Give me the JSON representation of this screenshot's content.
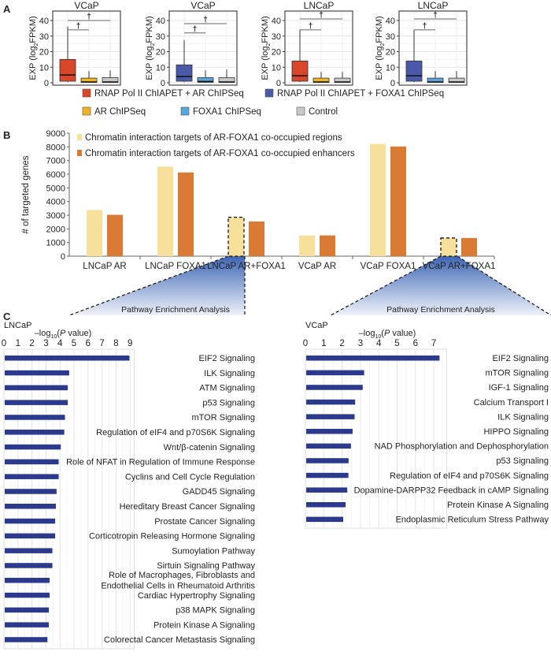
{
  "panel_labels": {
    "a": "A",
    "b": "B",
    "c": "C"
  },
  "colors": {
    "rnap_ar": "#d9472b",
    "rnap_foxa1": "#4a5aa8",
    "ar": "#f0b323",
    "foxa1": "#5aa6dc",
    "control": "#c8c8c8",
    "regions": "#f7df9c",
    "enhancers": "#d97b35",
    "pathway_bar": "#2b3a8c"
  },
  "legend_a": [
    {
      "label": "RNAP Pol II ChIAPET + AR ChIPSeq",
      "color_key": "rnap_ar"
    },
    {
      "label": "RNAP Pol II ChIAPET + FOXA1 ChIPSeq",
      "color_key": "rnap_foxa1"
    },
    {
      "label": "AR ChIPSeq",
      "color_key": "ar"
    },
    {
      "label": "FOXA1 ChIPSeq",
      "color_key": "foxa1"
    },
    {
      "label": "Control",
      "color_key": "control"
    }
  ],
  "pathway_label_left": "Pathway Enrichment Analysis",
  "pathway_label_right": "Pathway Enrichment Analysis",
  "chart_data": [
    {
      "type": "box",
      "title": "VCaP",
      "ylabel_parts": [
        "EXP (log",
        "2",
        "FPKM)"
      ],
      "ylim": [
        -2,
        46
      ],
      "yticks": [
        "0",
        "10",
        "20",
        "30",
        "40"
      ],
      "grid": true,
      "boxes": [
        {
          "series": "RNAP Pol II ChIAPET + AR ChIPSeq",
          "color_key": "rnap_ar",
          "min": 0.5,
          "q1": 1,
          "median": 5,
          "q3": 15,
          "max": 36
        },
        {
          "series": "AR ChIPSeq",
          "color_key": "ar",
          "min": 0,
          "q1": 0.3,
          "median": 0.5,
          "q3": 3,
          "max": 7.5
        },
        {
          "series": "Control",
          "color_key": "control",
          "min": 0,
          "q1": 0.3,
          "median": 0.5,
          "q3": 3.3,
          "max": 8
        }
      ],
      "significance": [
        {
          "from": 0,
          "to": 2,
          "level": 40,
          "label": "†"
        },
        {
          "from": 0,
          "to": 1,
          "level": 34,
          "label": "†"
        }
      ]
    },
    {
      "type": "box",
      "title": "VCaP",
      "ylabel_parts": [
        "EXP (log",
        "2",
        "FPKM)"
      ],
      "ylim": [
        -2,
        46
      ],
      "yticks": [
        "0",
        "10",
        "20",
        "30",
        "40"
      ],
      "grid": true,
      "boxes": [
        {
          "series": "RNAP Pol II ChIAPET + FOXA1 ChIPSeq",
          "color_key": "rnap_foxa1",
          "min": 0.5,
          "q1": 1,
          "median": 4,
          "q3": 11.5,
          "max": 27.5
        },
        {
          "series": "FOXA1 ChIPSeq",
          "color_key": "foxa1",
          "min": 0,
          "q1": 0.3,
          "median": 0.8,
          "q3": 3.3,
          "max": 8
        },
        {
          "series": "Control",
          "color_key": "control",
          "min": 0,
          "q1": 0.3,
          "median": 0.5,
          "q3": 3.3,
          "max": 8.5
        }
      ],
      "significance": [
        {
          "from": 0,
          "to": 2,
          "level": 38,
          "label": "†"
        },
        {
          "from": 0,
          "to": 1,
          "level": 32,
          "label": "†"
        }
      ]
    },
    {
      "type": "box",
      "title": "LNCaP",
      "ylabel_parts": [
        "EXP (log",
        "2",
        "FPKM)"
      ],
      "ylim": [
        -2,
        46
      ],
      "yticks": [
        "0",
        "10",
        "20",
        "30",
        "40"
      ],
      "grid": true,
      "boxes": [
        {
          "series": "RNAP Pol II ChIAPET + AR ChIPSeq",
          "color_key": "rnap_ar",
          "min": 0.5,
          "q1": 1,
          "median": 4.5,
          "q3": 14,
          "max": 34
        },
        {
          "series": "AR ChIPSeq",
          "color_key": "ar",
          "min": 0,
          "q1": 0.3,
          "median": 0.5,
          "q3": 3,
          "max": 7
        },
        {
          "series": "Control",
          "color_key": "control",
          "min": 0,
          "q1": 0.3,
          "median": 0.5,
          "q3": 3,
          "max": 7
        }
      ],
      "significance": [
        {
          "from": 0,
          "to": 2,
          "level": 41,
          "label": "†"
        },
        {
          "from": 0,
          "to": 1,
          "level": 34,
          "label": "†"
        }
      ]
    },
    {
      "type": "box",
      "title": "LNCaP",
      "ylabel_parts": [
        "EXP (log",
        "2",
        "FPKM)"
      ],
      "ylim": [
        -2,
        46
      ],
      "yticks": [
        "0",
        "10",
        "20",
        "30",
        "40"
      ],
      "grid": true,
      "boxes": [
        {
          "series": "RNAP Pol II ChIAPET + FOXA1 ChIPSeq",
          "color_key": "rnap_foxa1",
          "min": 0.5,
          "q1": 1,
          "median": 4.5,
          "q3": 14,
          "max": 34
        },
        {
          "series": "FOXA1 ChIPSeq",
          "color_key": "foxa1",
          "min": 0,
          "q1": 0.3,
          "median": 0.5,
          "q3": 3,
          "max": 7.5
        },
        {
          "series": "Control",
          "color_key": "control",
          "min": 0,
          "q1": 0.3,
          "median": 0.5,
          "q3": 3,
          "max": 7.5
        }
      ],
      "significance": [
        {
          "from": 0,
          "to": 2,
          "level": 41,
          "label": "†"
        },
        {
          "from": 0,
          "to": 1,
          "level": 34,
          "label": "†"
        }
      ]
    },
    {
      "type": "bar",
      "ylabel": "# of targeted genes",
      "ylim": [
        0,
        9000
      ],
      "yticks": [
        "0",
        "1000",
        "2000",
        "3000",
        "4000",
        "5000",
        "6000",
        "7000",
        "8000",
        "9000"
      ],
      "categories": [
        "LNCaP AR",
        "LNCaP FOXA1",
        "LNCaP AR+FOXA1",
        "VCaP AR",
        "VCaP FOXA1",
        "VCaP AR+FOXA1"
      ],
      "legend": "top-left",
      "series": [
        {
          "name": "Chromatin interaction targets of AR-FOXA1 co-occupied regions",
          "color_key": "regions",
          "values": [
            3380,
            6560,
            2850,
            1520,
            8220,
            1330
          ]
        },
        {
          "name": "Chromatin interaction targets of AR-FOXA1 co-occupied enhancers",
          "color_key": "enhancers",
          "values": [
            3030,
            6130,
            2540,
            1520,
            8030,
            1330
          ]
        }
      ],
      "highlighted_categories": [
        "LNCaP AR+FOXA1",
        "VCaP AR+FOXA1"
      ]
    },
    {
      "type": "bar",
      "orientation": "horizontal",
      "title": "LNCaP",
      "xlabel_parts": [
        "–log",
        "10",
        "(",
        "P",
        " value)"
      ],
      "xlim": [
        0,
        9.3
      ],
      "xticks": [
        "0",
        "1",
        "2",
        "3",
        "4",
        "5",
        "6",
        "7",
        "8",
        "9"
      ],
      "grid": true,
      "categories": [
        "EIF2 Signaling",
        "ILK Signaling",
        "ATM Signaling",
        "p53 Signaling",
        "mTOR Signaling",
        "Regulation of eIF4 and p70S6K Signaling",
        "Wnt/β-catenin Signaling",
        "Role of NFAT in Regulation of Immune Response",
        "Cyclins and Cell Cycle Regulation",
        "GADD45 Signaling",
        "Hereditary Breast Cancer Signaling",
        "Prostate Cancer Signaling",
        "Corticotropin Releasing Hormone Signaling",
        "Sumoylation Pathway",
        "Sirtuin Signaling Pathway",
        "Role of Macrophages, Fibroblasts and\nEndothelial Cells in Rheumatoid Arthritis",
        "Cardiac Hypertrophy Signaling",
        "p38 MAPK Signaling",
        "Protein Kinase A Signaling",
        "Colorectal Cancer Metastasis Signaling"
      ],
      "values": [
        8.9,
        4.6,
        4.5,
        4.5,
        4.3,
        4.25,
        4.0,
        3.85,
        3.85,
        3.7,
        3.65,
        3.6,
        3.6,
        3.4,
        3.4,
        3.2,
        3.2,
        3.15,
        3.15,
        3.05
      ]
    },
    {
      "type": "bar",
      "orientation": "horizontal",
      "title": "VCaP",
      "xlabel_parts": [
        "–log",
        "10",
        "(",
        "P",
        " value)"
      ],
      "xlim": [
        0,
        7.7
      ],
      "xticks": [
        "0",
        "1",
        "2",
        "3",
        "4",
        "5",
        "6",
        "7"
      ],
      "grid": true,
      "categories": [
        "EIF2 Signaling",
        "mTOR Signaling",
        "IGF-1 Signaling",
        "Calcium Transport I",
        "ILK Signaling",
        "HIPPO Signaling",
        "NAD Phosphorylation and Dephosphorylation",
        "p53 Signaling",
        "Regulation of eIF4 and p70S6K Signaling",
        "Dopamine-DARPP32 Feedback in cAMP Signaling",
        "Protein Kinase A Signaling",
        "Endoplasmic Reticulum Stress Pathway"
      ],
      "values": [
        7.27,
        3.16,
        3.08,
        2.67,
        2.64,
        2.53,
        2.44,
        2.31,
        2.3,
        2.24,
        2.15,
        2.02
      ]
    }
  ]
}
